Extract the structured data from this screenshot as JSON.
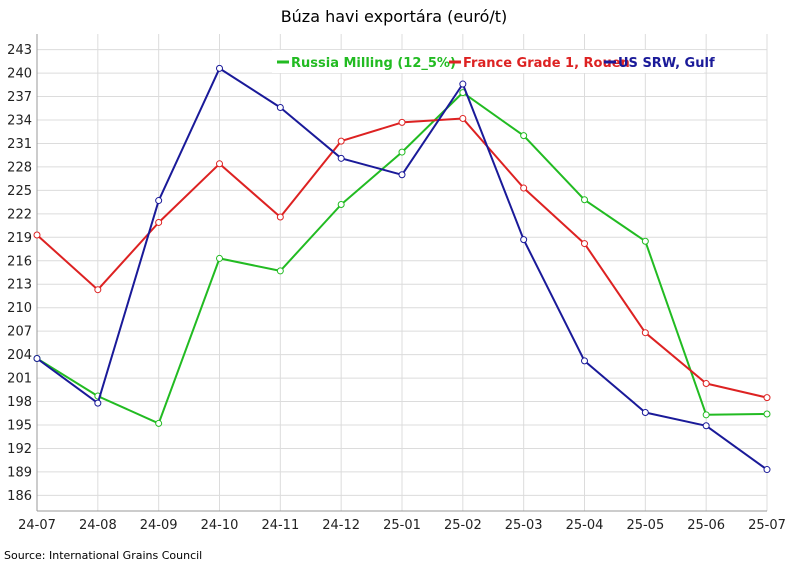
{
  "chart_data": {
    "type": "line",
    "title": "Búza havi exportára (euró/t)",
    "xlabel": "",
    "ylabel": "",
    "x": [
      "24-07",
      "24-08",
      "24-09",
      "24-10",
      "24-11",
      "24-12",
      "25-01",
      "25-02",
      "25-03",
      "25-04",
      "25-05",
      "25-06",
      "25-07"
    ],
    "yticks": [
      186,
      189,
      192,
      195,
      198,
      201,
      204,
      207,
      210,
      213,
      216,
      219,
      222,
      225,
      228,
      231,
      234,
      237,
      240,
      243
    ],
    "ylim": [
      184,
      245
    ],
    "grid": true,
    "legend_position": "top-right",
    "series": [
      {
        "name": "Russia Milling (12_5%)",
        "color": "#22bb22",
        "values": [
          203.5,
          198.7,
          195.2,
          216.3,
          214.7,
          223.2,
          229.9,
          237.5,
          232.0,
          223.8,
          218.5,
          196.3,
          196.4
        ]
      },
      {
        "name": "France Grade 1, Rouen",
        "color": "#dd2222",
        "values": [
          219.3,
          212.3,
          220.9,
          228.4,
          221.6,
          231.3,
          233.7,
          234.2,
          225.3,
          218.2,
          206.8,
          200.3,
          198.5
        ]
      },
      {
        "name": "US SRW, Gulf",
        "color": "#1a1a99",
        "values": [
          203.5,
          197.8,
          223.7,
          240.6,
          235.6,
          229.1,
          227.0,
          238.6,
          218.7,
          203.2,
          196.6,
          194.9,
          189.3
        ]
      }
    ]
  },
  "source": "Source: International Grains Council"
}
